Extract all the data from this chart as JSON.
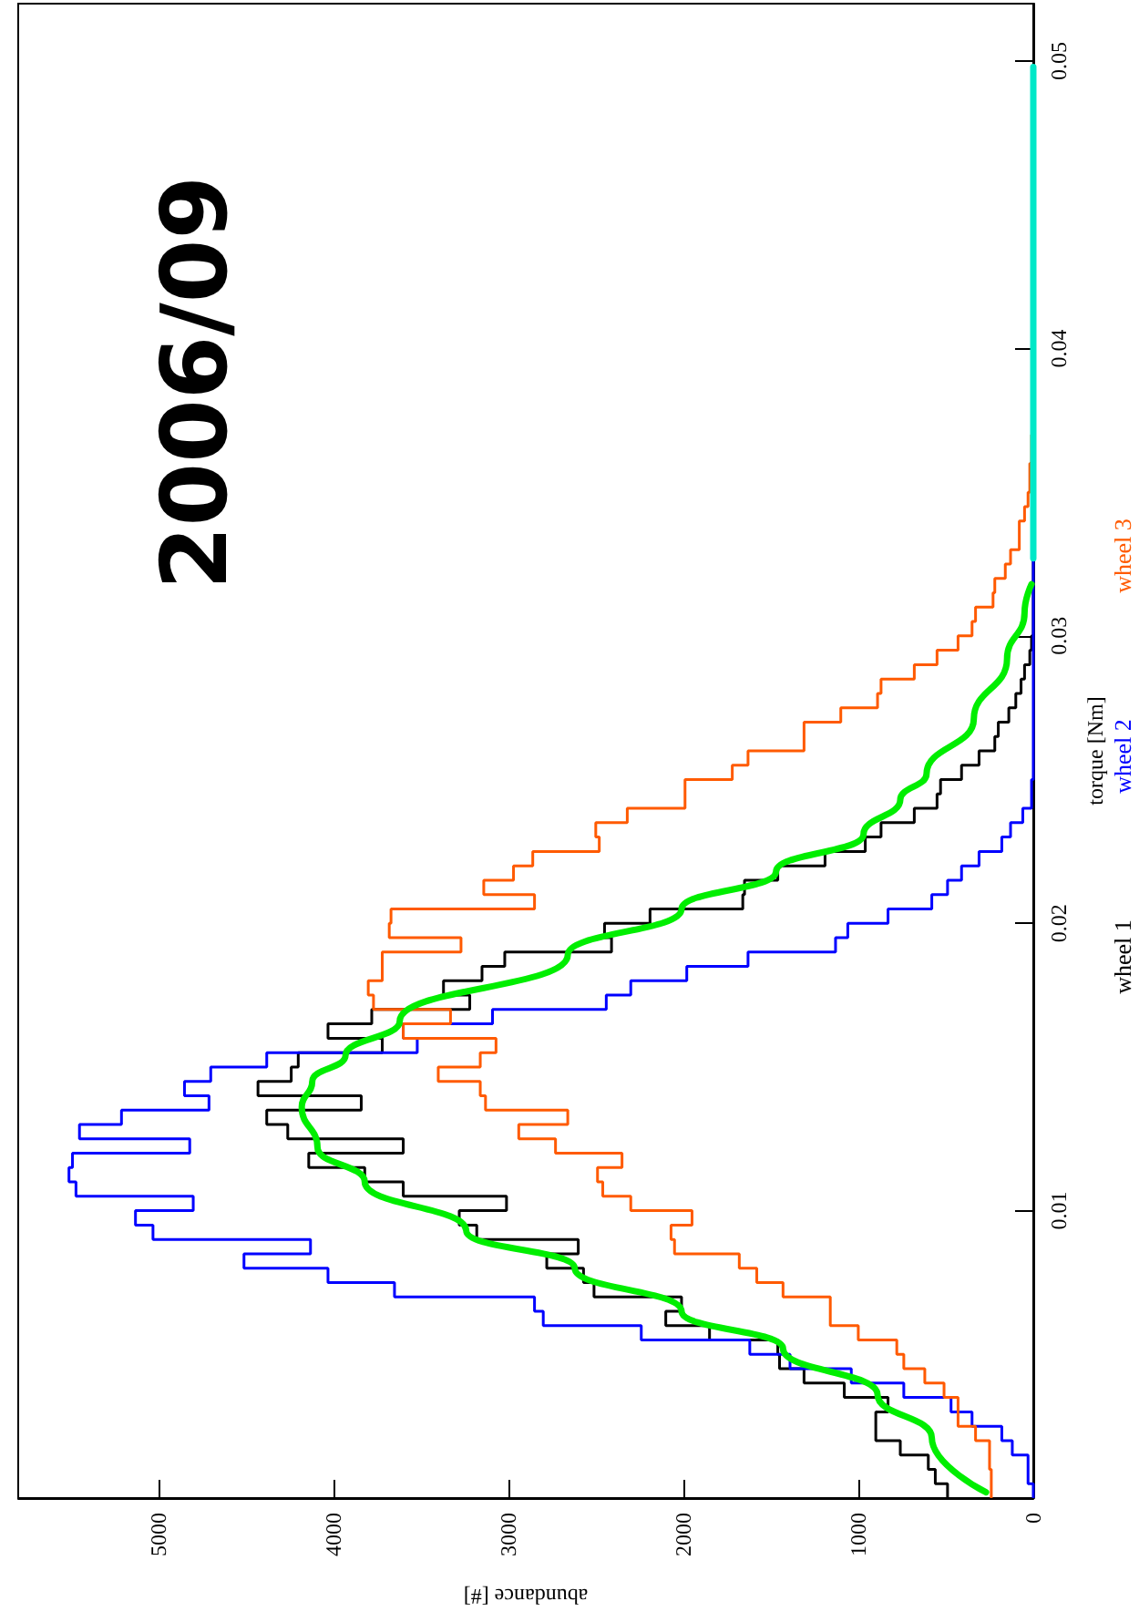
{
  "chart_data": {
    "type": "histogram",
    "orientation": "horizontal",
    "title": "2006/09",
    "ylabel": "torque [Nm]",
    "xlabel": "abundance [#]",
    "ylim": [
      0,
      0.052
    ],
    "yticks": [
      0.01,
      0.02,
      0.03,
      0.04,
      0.05
    ],
    "xlim": [
      5800,
      0
    ],
    "xticks": [
      0,
      1000,
      2000,
      3000,
      4000,
      5000
    ],
    "legend": "right",
    "bins": [
      0,
      0.0005,
      0.001,
      0.0015,
      0.002,
      0.0025,
      0.003,
      0.0035,
      0.004,
      0.0045,
      0.005,
      0.0055,
      0.006,
      0.0065,
      0.007,
      0.0075,
      0.008,
      0.0085,
      0.009,
      0.0095,
      0.01,
      0.0105,
      0.011,
      0.0115,
      0.012,
      0.0125,
      0.013,
      0.0135,
      0.014,
      0.0145,
      0.015,
      0.0155,
      0.016,
      0.0165,
      0.017,
      0.0175,
      0.018,
      0.0185,
      0.019,
      0.0195,
      0.02,
      0.0205,
      0.021,
      0.0215,
      0.022,
      0.0225,
      0.023,
      0.0235,
      0.024,
      0.0245,
      0.025,
      0.0255,
      0.026,
      0.0265,
      0.027,
      0.0275,
      0.028,
      0.0285,
      0.029,
      0.0295,
      0.03,
      0.0305,
      0.031,
      0.0315,
      0.032,
      0.0325,
      0.033,
      0.0335,
      0.034,
      0.0345,
      0.035,
      0.0355,
      0.036,
      0.0365,
      0.037
    ],
    "series": [
      {
        "name": "wheel 1",
        "color": "#000000",
        "values": [
          490,
          560,
          600,
          760,
          900,
          900,
          830,
          1080,
          1310,
          1450,
          1460,
          1850,
          2100,
          2010,
          2510,
          2570,
          2780,
          2600,
          3180,
          3280,
          3010,
          3600,
          3820,
          4140,
          3600,
          4260,
          4380,
          3840,
          4430,
          4240,
          4200,
          3720,
          4030,
          3780,
          3220,
          3370,
          3150,
          3020,
          2410,
          2450,
          2190,
          1660,
          1650,
          1460,
          1190,
          960,
          870,
          680,
          550,
          530,
          410,
          310,
          220,
          200,
          140,
          100,
          70,
          50,
          20,
          10,
          0,
          0,
          0,
          0,
          0,
          0,
          0,
          0,
          0,
          0,
          0,
          0,
          0,
          0
        ]
      },
      {
        "name": "wheel 2",
        "color": "#0000ff",
        "values": [
          0,
          30,
          30,
          120,
          180,
          350,
          470,
          740,
          1040,
          1390,
          1620,
          2240,
          2800,
          2850,
          3650,
          4030,
          4510,
          4130,
          5030,
          5130,
          4800,
          5470,
          5510,
          5490,
          4820,
          5450,
          5210,
          4710,
          4850,
          4700,
          4380,
          3520,
          3600,
          3090,
          2440,
          2300,
          1980,
          1630,
          1130,
          1060,
          830,
          580,
          490,
          410,
          310,
          180,
          130,
          60,
          10,
          10,
          0,
          0,
          0,
          0,
          0,
          0,
          0,
          0,
          0,
          0,
          0,
          0,
          0,
          0,
          0,
          0,
          0,
          0,
          0,
          0,
          0,
          0,
          0,
          0
        ]
      },
      {
        "name": "wheel 3",
        "color": "#ff5a00",
        "values": [
          240,
          240,
          250,
          250,
          330,
          430,
          430,
          510,
          620,
          740,
          780,
          1000,
          1160,
          1160,
          1430,
          1580,
          1680,
          2050,
          2070,
          1950,
          2300,
          2460,
          2490,
          2350,
          2730,
          2940,
          2660,
          3130,
          3160,
          3400,
          3160,
          3070,
          3600,
          3330,
          3770,
          3800,
          3720,
          3720,
          3270,
          3680,
          3670,
          2850,
          3140,
          2970,
          2860,
          2480,
          2500,
          2320,
          1990,
          1990,
          1720,
          1630,
          1310,
          1310,
          1100,
          890,
          870,
          680,
          550,
          430,
          350,
          330,
          230,
          220,
          160,
          130,
          80,
          80,
          50,
          30,
          20,
          20,
          10,
          10
        ]
      },
      {
        "type": "line",
        "color": "#00ee00",
        "x": [
          0.0002,
          0.0021,
          0.0036,
          0.0052,
          0.0065,
          0.008,
          0.0093,
          0.011,
          0.0122,
          0.0136,
          0.0145,
          0.0154,
          0.0166,
          0.0189,
          0.0205,
          0.0218,
          0.0231,
          0.0243,
          0.0252,
          0.0271,
          0.0292,
          0.0308,
          0.0318
        ],
        "values": [
          270,
          580,
          890,
          1430,
          2010,
          2620,
          3240,
          3820,
          4090,
          4180,
          4120,
          3930,
          3620,
          2660,
          2010,
          1470,
          970,
          760,
          610,
          340,
          150,
          50,
          10
        ]
      },
      {
        "type": "line",
        "color": "#00e8c8",
        "x": [
          0.0327,
          0.0498
        ],
        "values": [
          0,
          0
        ]
      }
    ]
  }
}
